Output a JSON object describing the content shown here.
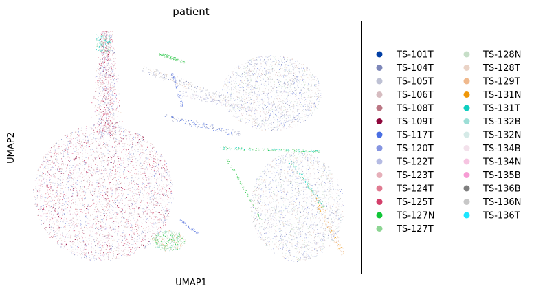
{
  "chart_data": {
    "type": "scatter",
    "title": "patient",
    "xlabel": "UMAP1",
    "ylabel": "UMAP2",
    "grid": false,
    "ticks": false,
    "legend_placement": "right",
    "legend_columns": 2,
    "series": [
      {
        "name": "TS-101T",
        "color": "#023fa5"
      },
      {
        "name": "TS-104T",
        "color": "#7d87b9"
      },
      {
        "name": "TS-105T",
        "color": "#bec1d4"
      },
      {
        "name": "TS-106T",
        "color": "#d6bcc0"
      },
      {
        "name": "TS-108T",
        "color": "#bb7784"
      },
      {
        "name": "TS-109T",
        "color": "#8e063b"
      },
      {
        "name": "TS-117T",
        "color": "#4a6fe3"
      },
      {
        "name": "TS-120T",
        "color": "#8595e1"
      },
      {
        "name": "TS-122T",
        "color": "#b5bbe3"
      },
      {
        "name": "TS-123T",
        "color": "#e6afb9"
      },
      {
        "name": "TS-124T",
        "color": "#e07b91"
      },
      {
        "name": "TS-125T",
        "color": "#d33f6a"
      },
      {
        "name": "TS-127N",
        "color": "#11c638"
      },
      {
        "name": "TS-127T",
        "color": "#8dd593"
      },
      {
        "name": "TS-128N",
        "color": "#c6dec7"
      },
      {
        "name": "TS-128T",
        "color": "#ead3c6"
      },
      {
        "name": "TS-129T",
        "color": "#f0b98d"
      },
      {
        "name": "TS-131N",
        "color": "#ef9708"
      },
      {
        "name": "TS-131T",
        "color": "#0fcfc0"
      },
      {
        "name": "TS-132B",
        "color": "#9cded6"
      },
      {
        "name": "TS-132N",
        "color": "#d5eae7"
      },
      {
        "name": "TS-134B",
        "color": "#f3e1eb"
      },
      {
        "name": "TS-134N",
        "color": "#f6c4e1"
      },
      {
        "name": "TS-135B",
        "color": "#f79cd4"
      },
      {
        "name": "TS-136B",
        "color": "#7f7f7f"
      },
      {
        "name": "TS-136N",
        "color": "#c7c7c7"
      },
      {
        "name": "TS-136T",
        "color": "#1ce6ff"
      }
    ]
  }
}
